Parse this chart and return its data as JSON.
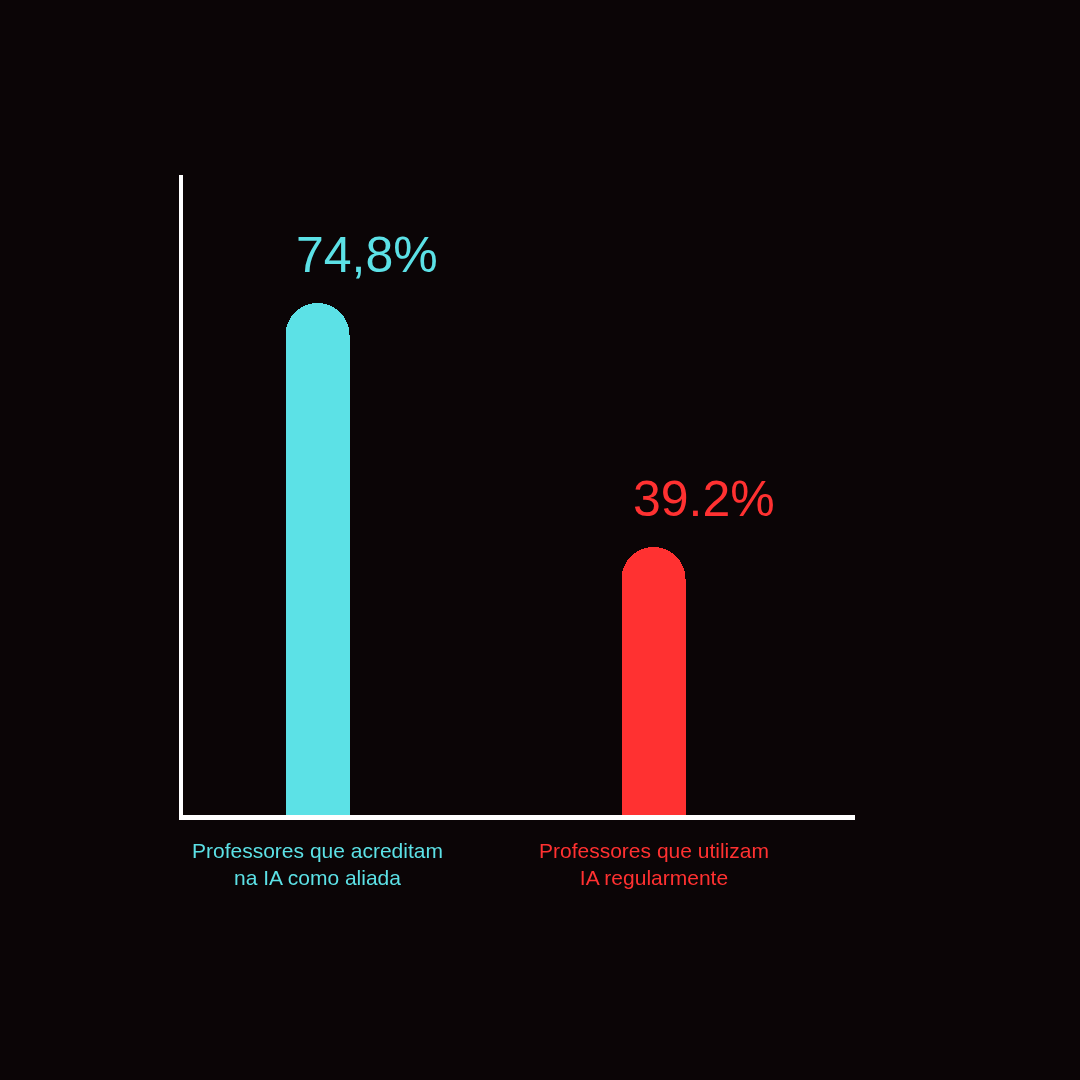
{
  "chart_data": {
    "type": "bar",
    "categories": [
      "Professores que acreditam\nna IA como aliada",
      "Professores que utilizam\nIA regularmente"
    ],
    "values": [
      74.8,
      39.2
    ],
    "colors": [
      "#5ce1e6",
      "#ff3131"
    ],
    "value_labels": [
      "74,8%",
      "39.2%"
    ],
    "ylim": [
      0,
      93.4
    ],
    "tick_labels": false
  }
}
